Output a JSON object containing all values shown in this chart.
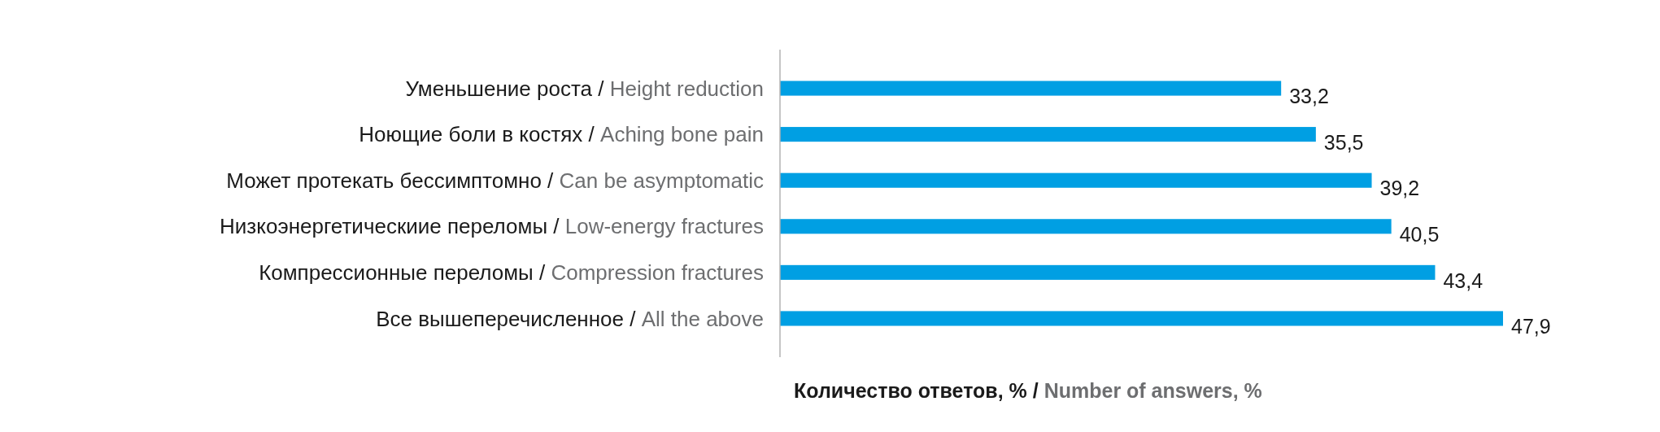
{
  "chart_data": {
    "type": "bar",
    "orientation": "horizontal",
    "xlabel": "Количество ответов, % / Number of answers, %",
    "categories": [
      "Уменьшение роста / Height reduction",
      "Ноющие боли в костях / Aching bone pain",
      "Может протекать бессимптомно / Can be asymptomatic",
      "Низкоэнергетическиие переломы / Low-energy fractures",
      "Компрессионные переломы / Compression fractures",
      "Все вышеперечисленное / All the above"
    ],
    "values": [
      33.2,
      35.5,
      39.2,
      40.5,
      43.4,
      47.9
    ],
    "value_labels": [
      "33,2",
      "35,5",
      "39,2",
      "40,5",
      "43,4",
      "47,9"
    ],
    "color": "#009fe3"
  }
}
